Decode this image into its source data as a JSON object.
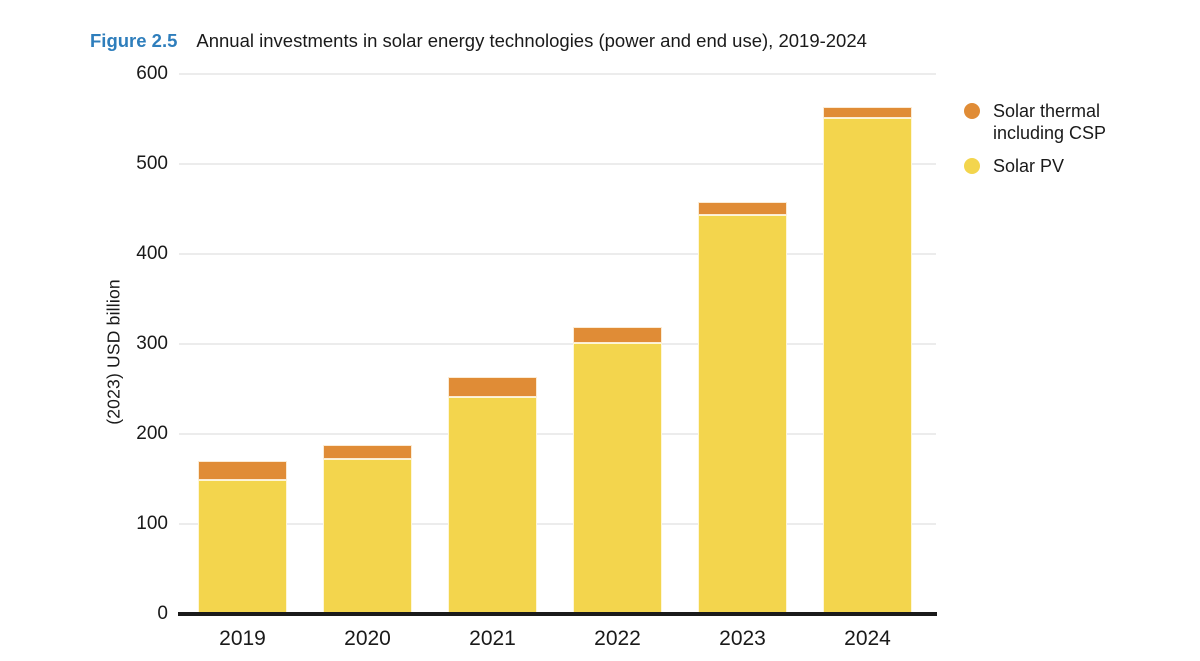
{
  "figure": {
    "label": "Figure 2.5",
    "title": "Annual investments in solar energy technologies (power and end use), 2019-2024"
  },
  "colors": {
    "figure_label_blue": "#2E7EBC",
    "solar_pv_yellow": "#F3D54D",
    "solar_thermal_orange": "#E08C36",
    "gridline_gray": "#ECECEC",
    "axis_black": "#1A1A1A",
    "text": "#1A1A1A",
    "background": "#FFFFFF"
  },
  "chart_data": {
    "type": "bar",
    "stacked": true,
    "title": "Annual investments in solar energy technologies (power and end use), 2019-2024",
    "categories": [
      "2019",
      "2020",
      "2021",
      "2022",
      "2023",
      "2024"
    ],
    "series": [
      {
        "name": "Solar PV",
        "color": "#F3D54D",
        "values": [
          149,
          172,
          241,
          301,
          443,
          551
        ]
      },
      {
        "name": "Solar thermal including CSP",
        "color": "#E08C36",
        "values": [
          21,
          16,
          22,
          18,
          15,
          12
        ]
      }
    ],
    "totals": [
      170,
      188,
      263,
      319,
      458,
      563
    ],
    "xlabel": "",
    "ylabel": "(2023) USD billion",
    "ylim": [
      0,
      600
    ],
    "yticks": [
      0,
      100,
      200,
      300,
      400,
      500,
      600
    ],
    "grid": true,
    "legend_position": "top-right",
    "legend": [
      {
        "label": "Solar thermal including CSP",
        "color": "#E08C36"
      },
      {
        "label": "Solar PV",
        "color": "#F3D54D"
      }
    ]
  }
}
